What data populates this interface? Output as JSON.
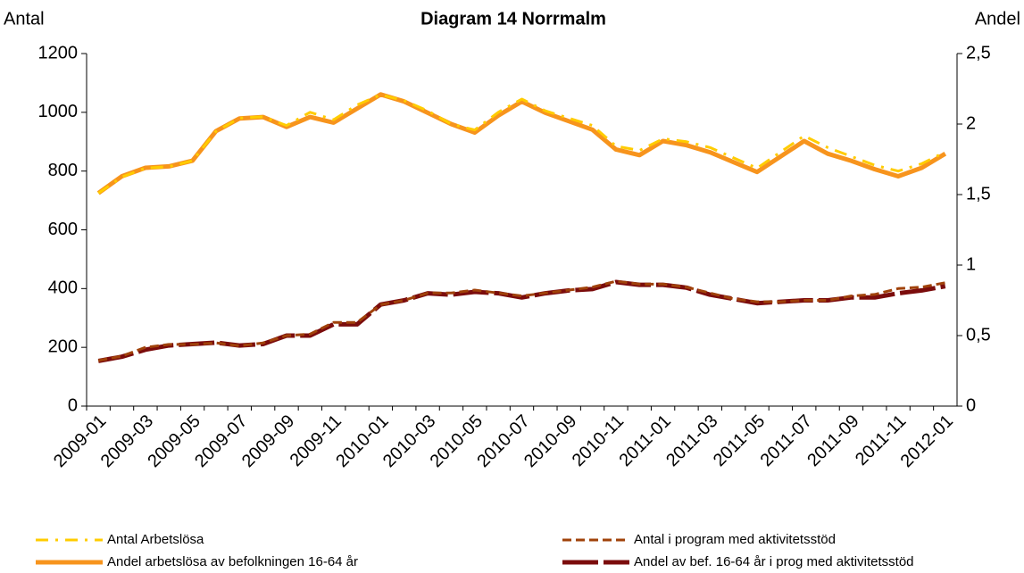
{
  "chart_data": {
    "type": "line",
    "title": "Diagram 14 Norrmalm",
    "y_label": "Antal",
    "y2_label": "Andel",
    "categories": [
      "2009-01",
      null,
      "2009-03",
      null,
      "2009-05",
      null,
      "2009-07",
      null,
      "2009-09",
      null,
      "2009-11",
      null,
      "2010-01",
      null,
      "2010-03",
      null,
      "2010-05",
      null,
      "2010-07",
      null,
      "2010-09",
      null,
      "2010-11",
      null,
      "2011-01",
      null,
      "2011-03",
      null,
      "2011-05",
      null,
      "2011-07",
      null,
      "2011-09",
      null,
      "2011-11",
      null,
      "2012-01"
    ],
    "ylim": [
      0,
      1200
    ],
    "yticks": [
      0,
      200,
      400,
      600,
      800,
      1000,
      1200
    ],
    "y2lim": [
      0,
      2.5
    ],
    "y2ticks": [
      0,
      {
        "value": 0.5,
        "label": "0,5"
      },
      1,
      {
        "value": 1.5,
        "label": "1,5"
      },
      2,
      {
        "value": 2.5,
        "label": "2,5"
      }
    ],
    "grid": false,
    "series": [
      {
        "name": "Antal Arbetslösa",
        "color": "#ffcc00",
        "values": [
          725,
          780,
          810,
          815,
          835,
          935,
          980,
          985,
          955,
          1000,
          975,
          1025,
          1060,
          1040,
          1005,
          960,
          940,
          1000,
          1045,
          1005,
          980,
          955,
          885,
          870,
          910,
          900,
          880,
          845,
          810,
          865,
          920,
          880,
          850,
          820,
          800,
          825,
          865
        ]
      },
      {
        "name": "Antal i program med aktivitetsstöd",
        "color": "#a0420a",
        "values": [
          155,
          170,
          200,
          210,
          210,
          215,
          205,
          215,
          240,
          245,
          285,
          285,
          345,
          360,
          385,
          385,
          395,
          385,
          375,
          385,
          395,
          405,
          425,
          415,
          415,
          405,
          385,
          365,
          355,
          355,
          360,
          360,
          375,
          380,
          400,
          405,
          420
        ]
      },
      {
        "name": "Andel arbetslösa av befolkningen 16-64 år",
        "color": "#f7941d",
        "axis": "y2",
        "values": [
          1.51,
          1.63,
          1.69,
          1.7,
          1.74,
          1.95,
          2.04,
          2.05,
          1.98,
          2.05,
          2.01,
          2.11,
          2.21,
          2.16,
          2.08,
          2.0,
          1.94,
          2.06,
          2.16,
          2.08,
          2.02,
          1.96,
          1.82,
          1.78,
          1.88,
          1.85,
          1.8,
          1.73,
          1.66,
          1.77,
          1.88,
          1.79,
          1.74,
          1.68,
          1.63,
          1.69,
          1.79
        ]
      },
      {
        "name": "Andel av bef. 16-64 år i prog med aktivitetsstöd",
        "color": "#7b0c0c",
        "axis": "y2",
        "values": [
          0.32,
          0.35,
          0.4,
          0.43,
          0.44,
          0.45,
          0.43,
          0.44,
          0.5,
          0.5,
          0.58,
          0.58,
          0.72,
          0.75,
          0.8,
          0.79,
          0.81,
          0.8,
          0.77,
          0.8,
          0.82,
          0.83,
          0.88,
          0.86,
          0.86,
          0.84,
          0.79,
          0.76,
          0.73,
          0.74,
          0.75,
          0.75,
          0.77,
          0.77,
          0.8,
          0.82,
          0.85
        ]
      }
    ]
  }
}
